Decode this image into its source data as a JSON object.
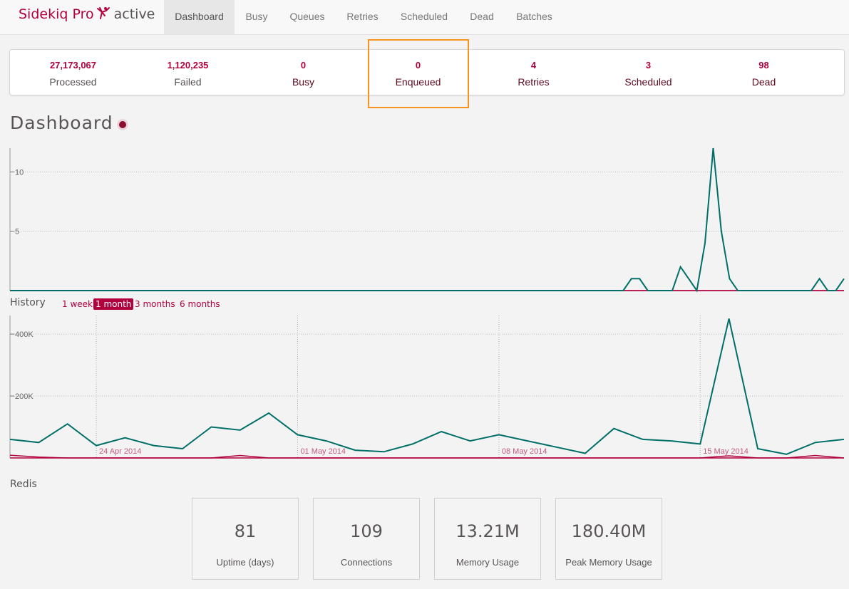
{
  "navbar": {
    "brand": "Sidekiq Pro",
    "status": "active",
    "tabs": [
      {
        "label": "Dashboard",
        "active": true
      },
      {
        "label": "Busy"
      },
      {
        "label": "Queues"
      },
      {
        "label": "Retries"
      },
      {
        "label": "Scheduled"
      },
      {
        "label": "Dead"
      },
      {
        "label": "Batches"
      }
    ]
  },
  "summary": [
    {
      "count": "27,173,067",
      "label": "Processed"
    },
    {
      "count": "1,120,235",
      "label": "Failed"
    },
    {
      "count": "0",
      "label": "Busy"
    },
    {
      "count": "0",
      "label": "Enqueued"
    },
    {
      "count": "4",
      "label": "Retries"
    },
    {
      "count": "3",
      "label": "Scheduled"
    },
    {
      "count": "98",
      "label": "Dead"
    }
  ],
  "page_title": "Dashboard",
  "history": {
    "label": "History",
    "ranges": [
      {
        "label": "1 week"
      },
      {
        "label": "1 month",
        "active": true
      },
      {
        "label": "3 months"
      },
      {
        "label": "6 months"
      }
    ]
  },
  "colors": {
    "accent": "#b1003e",
    "processed": "#006f68",
    "failed": "#b1003e",
    "highlight": "#f7931e"
  },
  "chart_data": [
    {
      "type": "line",
      "name": "realtime",
      "ylim": [
        0,
        12
      ],
      "yticks": [
        "10",
        "5"
      ],
      "ytick_values": [
        10,
        5
      ],
      "series": [
        {
          "name": "processed",
          "color": "#006f68",
          "values": [
            0,
            0,
            0,
            0,
            0,
            0,
            0,
            0,
            0,
            0,
            0,
            0,
            0,
            0,
            0,
            0,
            0,
            0,
            0,
            0,
            0,
            0,
            0,
            0,
            0,
            0,
            0,
            0,
            0,
            0,
            0,
            0,
            0,
            0,
            0,
            0,
            0,
            0,
            0,
            0,
            0,
            0,
            0,
            0,
            0,
            0,
            0,
            0,
            0,
            0,
            0,
            0,
            0,
            0,
            0,
            0,
            0,
            0,
            0,
            0,
            0,
            0,
            0,
            0,
            0,
            0,
            0,
            0,
            0,
            0,
            0,
            0,
            0,
            0,
            0,
            0,
            1,
            1,
            0,
            0,
            0,
            0,
            2,
            1,
            0,
            4,
            12,
            5,
            1,
            0,
            0,
            0,
            0,
            0,
            0,
            0,
            0,
            0,
            0,
            1,
            0,
            0,
            1
          ]
        },
        {
          "name": "failed",
          "color": "#b1003e",
          "values": [
            0,
            0,
            0,
            0,
            0,
            0,
            0,
            0,
            0,
            0,
            0,
            0,
            0,
            0,
            0,
            0,
            0,
            0,
            0,
            0,
            0,
            0,
            0,
            0,
            0,
            0,
            0,
            0,
            0,
            0,
            0,
            0,
            0,
            0,
            0,
            0,
            0,
            0,
            0,
            0,
            0,
            0,
            0,
            0,
            0,
            0,
            0,
            0,
            0,
            0,
            0,
            0,
            0,
            0,
            0,
            0,
            0,
            0,
            0,
            0,
            0,
            0,
            0,
            0,
            0,
            0,
            0,
            0,
            0,
            0,
            0,
            0,
            0,
            0,
            0,
            0,
            0,
            0,
            0,
            0,
            0,
            0,
            0,
            0,
            0,
            0,
            0,
            0,
            0,
            0,
            0,
            0,
            0,
            0,
            0,
            0,
            0,
            0,
            0,
            0,
            0,
            0,
            0
          ]
        }
      ]
    },
    {
      "type": "line",
      "name": "history",
      "ylim": [
        0,
        460000
      ],
      "yticks": [
        "400K",
        "200K"
      ],
      "ytick_values": [
        400000,
        200000
      ],
      "xtick_labels": [
        "24 Apr 2014",
        "01 May 2014",
        "08 May 2014",
        "15 May 2014"
      ],
      "xtick_indices": [
        3,
        10,
        17,
        24
      ],
      "series": [
        {
          "name": "processed",
          "color": "#006f68",
          "values": [
            60000,
            50000,
            110000,
            40000,
            65000,
            40000,
            30000,
            100000,
            90000,
            145000,
            75000,
            55000,
            25000,
            20000,
            45000,
            85000,
            55000,
            75000,
            55000,
            35000,
            15000,
            95000,
            60000,
            55000,
            45000,
            450000,
            30000,
            12000,
            50000,
            60000
          ]
        },
        {
          "name": "failed",
          "color": "#b1003e",
          "values": [
            9000,
            3000,
            0,
            0,
            0,
            0,
            0,
            0,
            8000,
            0,
            0,
            0,
            0,
            0,
            0,
            0,
            0,
            0,
            0,
            0,
            0,
            0,
            0,
            0,
            0,
            7000,
            0,
            0,
            8000,
            0
          ]
        }
      ]
    }
  ],
  "redis": {
    "label": "Redis",
    "stats": [
      {
        "value": "81",
        "label": "Uptime (days)"
      },
      {
        "value": "109",
        "label": "Connections"
      },
      {
        "value": "13.21M",
        "label": "Memory Usage"
      },
      {
        "value": "180.40M",
        "label": "Peak Memory Usage"
      }
    ]
  }
}
